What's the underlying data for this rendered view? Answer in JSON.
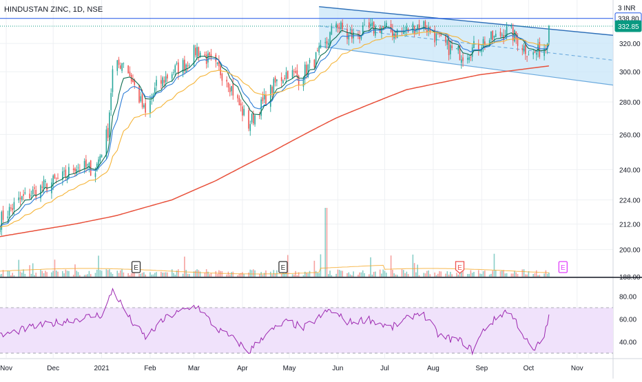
{
  "header": {
    "symbol_line": "HINDUSTAN ZINC, 1D, NSE",
    "currency": "3 INR"
  },
  "colors": {
    "up": "#26a69a",
    "down": "#ef5350",
    "ema_fast": "#0b6b4f",
    "ema_mid": "#2a7bd6",
    "ema_slow": "#f5b335",
    "ema_long": "#e8503a",
    "channel_fill": "#c8e5f8",
    "channel_edge": "#2d6fb8",
    "rsi": "#9c27b0",
    "rsi_band": "#f0e2fb",
    "earnings": "#333333",
    "earnings_future": "#e040fb",
    "earnings_alert": "#ef5350",
    "price_tag": "#1e53e5",
    "price_tag_green": "#089981"
  },
  "chart_data": {
    "type": "candlestick",
    "scale": "log",
    "ylim": [
      188,
      350
    ],
    "price_ticks": [
      188.0,
      200.0,
      212.0,
      224.0,
      240.0,
      260.0,
      280.0,
      300.0,
      320.0
    ],
    "price_tick_labels": [
      "188.00",
      "200.00",
      "212.00",
      "224.00",
      "240.00",
      "260.00",
      "280.00",
      "300.00",
      "320.00"
    ],
    "last_price_labels": [
      "338.80",
      "332.85"
    ],
    "last_price_values": [
      338.8,
      332.85
    ],
    "x_labels": [
      "Nov",
      "Dec",
      "2021",
      "Feb",
      "Mar",
      "Apr",
      "May",
      "Jun",
      "Jul",
      "Aug",
      "Sep",
      "Oct",
      "Nov"
    ],
    "x_label_dates": [
      "2020-11-01",
      "2020-12-01",
      "2021-01-01",
      "2021-02-01",
      "2021-03-01",
      "2021-04-01",
      "2021-05-01",
      "2021-06-01",
      "2021-07-01",
      "2021-08-01",
      "2021-09-01",
      "2021-10-01",
      "2021-11-01"
    ],
    "x_range": [
      "2020-10-28",
      "2021-11-24"
    ],
    "price_anchors": [
      [
        "2020-10-28",
        214
      ],
      [
        "2020-11-10",
        224
      ],
      [
        "2020-11-25",
        231
      ],
      [
        "2020-12-08",
        236
      ],
      [
        "2020-12-15",
        242
      ],
      [
        "2020-12-28",
        240
      ],
      [
        "2021-01-05",
        262
      ],
      [
        "2021-01-08",
        300
      ],
      [
        "2021-01-15",
        308
      ],
      [
        "2021-01-22",
        290
      ],
      [
        "2021-01-29",
        272
      ],
      [
        "2021-02-05",
        290
      ],
      [
        "2021-02-15",
        300
      ],
      [
        "2021-02-24",
        306
      ],
      [
        "2021-03-03",
        316
      ],
      [
        "2021-03-12",
        306
      ],
      [
        "2021-03-22",
        296
      ],
      [
        "2021-03-29",
        280
      ],
      [
        "2021-04-05",
        266
      ],
      [
        "2021-04-12",
        276
      ],
      [
        "2021-04-22",
        292
      ],
      [
        "2021-04-30",
        300
      ],
      [
        "2021-05-07",
        296
      ],
      [
        "2021-05-14",
        304
      ],
      [
        "2021-05-24",
        318
      ],
      [
        "2021-05-31",
        336
      ],
      [
        "2021-06-07",
        325
      ],
      [
        "2021-06-14",
        326
      ],
      [
        "2021-06-21",
        330
      ],
      [
        "2021-06-28",
        332
      ],
      [
        "2021-07-07",
        328
      ],
      [
        "2021-07-14",
        329
      ],
      [
        "2021-07-21",
        333
      ],
      [
        "2021-07-26",
        334
      ],
      [
        "2021-08-05",
        322
      ],
      [
        "2021-08-12",
        316
      ],
      [
        "2021-08-20",
        312
      ],
      [
        "2021-08-26",
        316
      ],
      [
        "2021-09-03",
        322
      ],
      [
        "2021-09-10",
        324
      ],
      [
        "2021-09-17",
        330
      ],
      [
        "2021-09-22",
        325
      ],
      [
        "2021-09-29",
        316
      ],
      [
        "2021-10-04",
        312
      ],
      [
        "2021-10-12",
        318
      ],
      [
        "2021-10-14",
        332.85
      ]
    ],
    "ema_200_anchors": [
      [
        "2020-10-28",
        206
      ],
      [
        "2020-12-15",
        212
      ],
      [
        "2021-01-10",
        216
      ],
      [
        "2021-02-15",
        224
      ],
      [
        "2021-03-15",
        234
      ],
      [
        "2021-04-20",
        250
      ],
      [
        "2021-05-31",
        270
      ],
      [
        "2021-07-15",
        288
      ],
      [
        "2021-08-31",
        298
      ],
      [
        "2021-10-14",
        304
      ]
    ],
    "channel": {
      "upper": [
        [
          "2021-05-20",
          348
        ],
        [
          "2021-11-24",
          326
        ]
      ],
      "lower": [
        [
          "2021-05-20",
          318
        ],
        [
          "2021-11-24",
          291
        ]
      ],
      "mid": [
        [
          "2021-05-20",
          333
        ],
        [
          "2021-11-24",
          308
        ]
      ]
    },
    "horizontal_lines": [
      338.8,
      332.85
    ],
    "volume_spike_dates": [
      "2021-05-24"
    ],
    "earnings_markers": [
      {
        "label": "E",
        "date": "2021-01-23",
        "style": "past"
      },
      {
        "label": "E",
        "date": "2021-04-27",
        "style": "past"
      },
      {
        "label": "E",
        "date": "2021-08-18",
        "style": "alert"
      },
      {
        "label": "E",
        "date": "2021-10-23",
        "style": "future"
      }
    ],
    "rsi": {
      "ticks": [
        40,
        60,
        80
      ],
      "tick_labels": [
        "40.00",
        "60.00",
        "80.00"
      ],
      "band": [
        30,
        70
      ],
      "ylim": [
        27,
        90
      ],
      "anchors": [
        [
          "2020-10-28",
          45
        ],
        [
          "2020-11-15",
          52
        ],
        [
          "2020-11-30",
          56
        ],
        [
          "2020-12-15",
          60
        ],
        [
          "2021-01-02",
          64
        ],
        [
          "2021-01-08",
          86
        ],
        [
          "2021-01-20",
          58
        ],
        [
          "2021-01-29",
          44
        ],
        [
          "2021-02-12",
          62
        ],
        [
          "2021-03-03",
          72
        ],
        [
          "2021-03-15",
          52
        ],
        [
          "2021-03-29",
          40
        ],
        [
          "2021-04-05",
          31
        ],
        [
          "2021-04-15",
          46
        ],
        [
          "2021-04-30",
          58
        ],
        [
          "2021-05-10",
          52
        ],
        [
          "2021-05-27",
          68
        ],
        [
          "2021-06-08",
          57
        ],
        [
          "2021-06-21",
          60
        ],
        [
          "2021-07-05",
          52
        ],
        [
          "2021-07-24",
          67
        ],
        [
          "2021-08-05",
          45
        ],
        [
          "2021-08-20",
          40
        ],
        [
          "2021-08-26",
          32
        ],
        [
          "2021-09-03",
          52
        ],
        [
          "2021-09-17",
          68
        ],
        [
          "2021-09-23",
          58
        ],
        [
          "2021-09-30",
          40
        ],
        [
          "2021-10-04",
          31
        ],
        [
          "2021-10-11",
          45
        ],
        [
          "2021-10-14",
          64
        ]
      ]
    }
  }
}
